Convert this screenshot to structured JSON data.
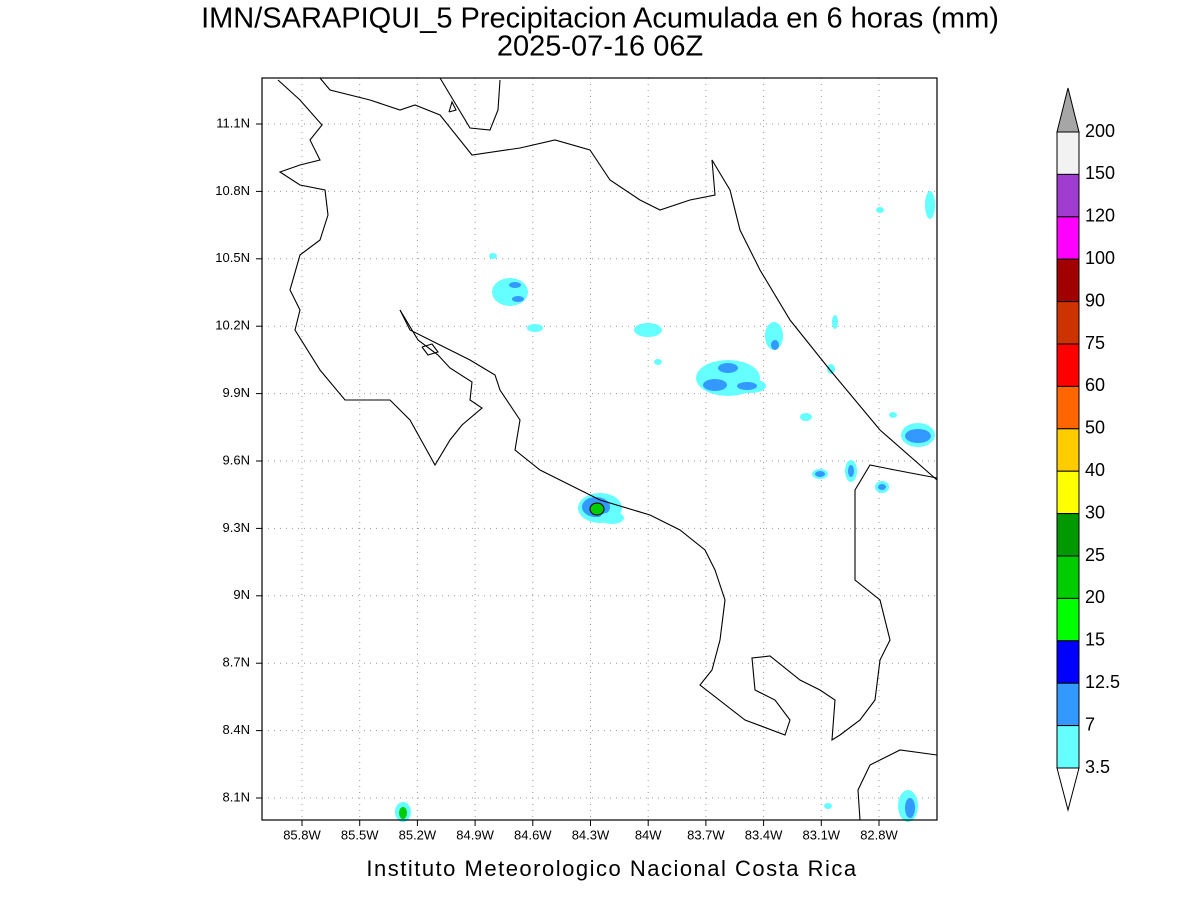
{
  "header": {
    "title": "IMN/SARAPIQUI_5 Precipitacion Acumulada en 6 horas (mm)",
    "subtitle": "2025-07-16 06Z"
  },
  "map": {
    "lon_labels": [
      "85.8W",
      "85.5W",
      "85.2W",
      "84.9W",
      "84.6W",
      "84.3W",
      "84W",
      "83.7W",
      "83.4W",
      "83.1W",
      "82.8W"
    ],
    "lat_labels": [
      "11.1N",
      "10.8N",
      "10.5N",
      "10.2N",
      "9.9N",
      "9.6N",
      "9.3N",
      "9N",
      "8.7N",
      "8.4N",
      "8.1N"
    ]
  },
  "legend": {
    "labels": [
      "200",
      "150",
      "120",
      "100",
      "90",
      "75",
      "60",
      "50",
      "40",
      "30",
      "25",
      "20",
      "15",
      "12.5",
      "7",
      "3.5"
    ],
    "colors": [
      "#f2f2f2",
      "#a03cd0",
      "#ff00ff",
      "#a00000",
      "#cc3300",
      "#ff0000",
      "#ff6600",
      "#ffcc00",
      "#ffff00",
      "#009900",
      "#00cc00",
      "#00ff00",
      "#0000ff",
      "#3399ff",
      "#66ffff"
    ],
    "over_color": "#a6a6a6",
    "under_color": "#ffffff"
  },
  "footer": "Instituto Meteorologico Nacional Costa Rica"
}
